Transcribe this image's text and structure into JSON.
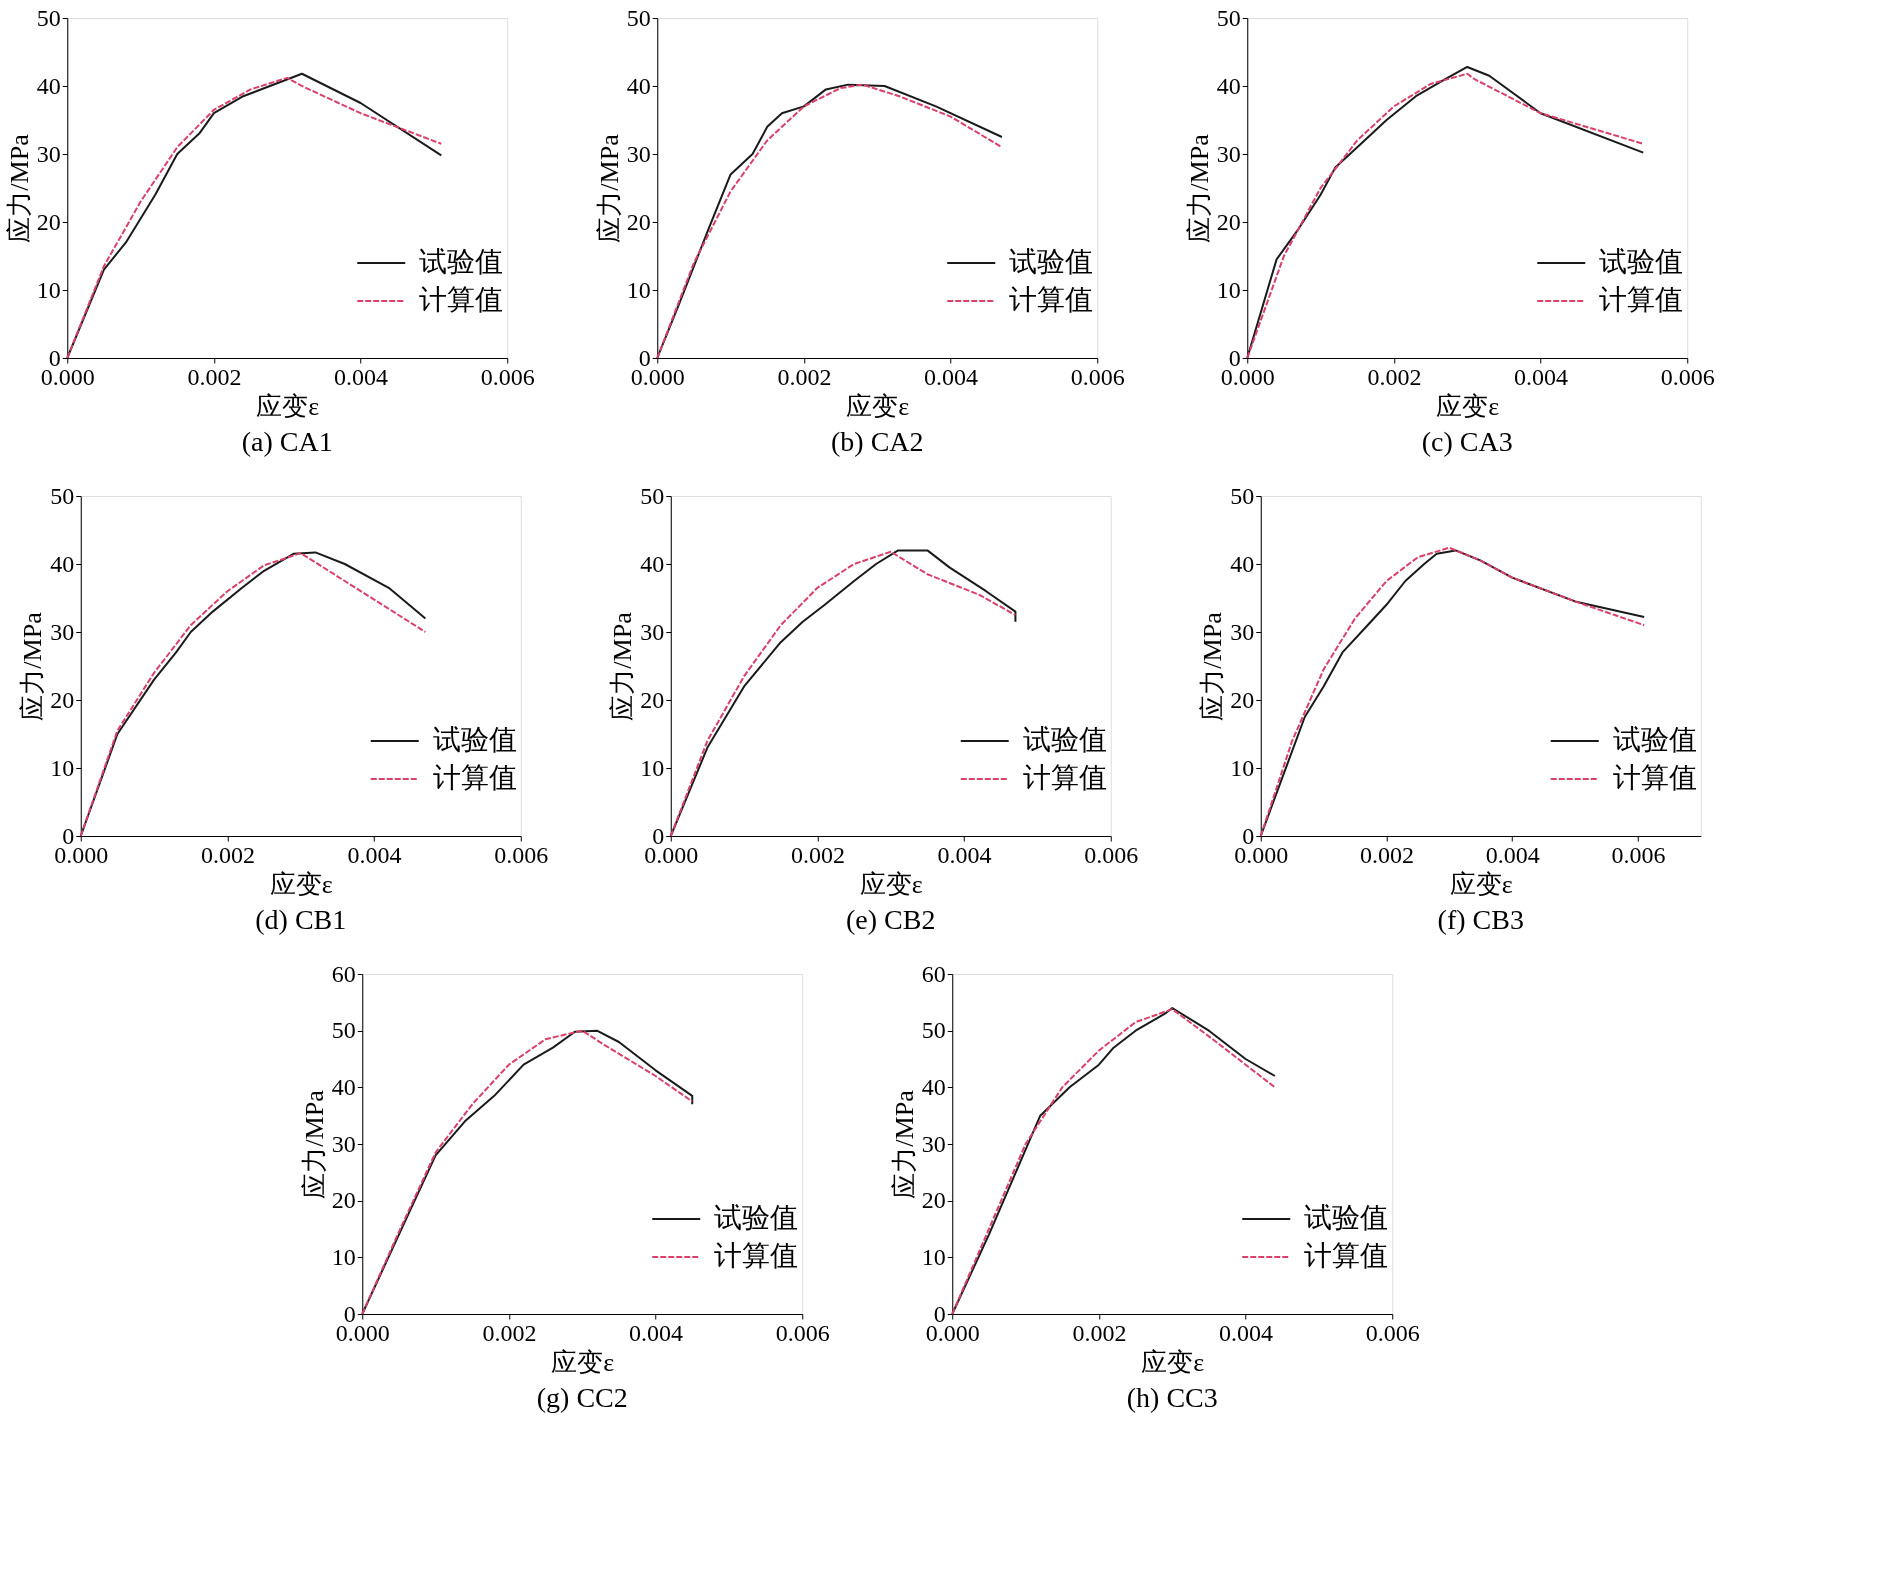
{
  "chart_data": [
    {
      "type": "line",
      "title": "(a) CA1",
      "xlabel": "应变ε",
      "ylabel": "应力/MPa",
      "xlim": [
        0,
        0.006
      ],
      "xticks": [
        {
          "value": 0,
          "label": "0.000"
        },
        {
          "value": 0.002,
          "label": "0.002"
        },
        {
          "value": 0.004,
          "label": "0.004"
        },
        {
          "value": 0.006,
          "label": "0.006"
        }
      ],
      "ylim": [
        0,
        50
      ],
      "yticks": [
        0,
        10,
        20,
        30,
        40,
        50
      ],
      "legend": "bottom right",
      "grid": false,
      "series": [
        {
          "name": "试验值",
          "color": "#1a1a1a",
          "line_style": "solid",
          "x": [
            0,
            0.0005,
            0.0008,
            0.0012,
            0.0015,
            0.0018,
            0.002,
            0.0024,
            0.0032,
            0.004,
            0.0051
          ],
          "values": [
            0,
            13,
            17,
            24,
            30,
            33,
            36,
            38.5,
            41.8,
            37.5,
            29.8
          ]
        },
        {
          "name": "计算值",
          "color": "#d9406a",
          "line_style": "dashed",
          "x": [
            0,
            0.0005,
            0.001,
            0.0015,
            0.002,
            0.0025,
            0.003,
            0.0032,
            0.004,
            0.0051
          ],
          "values": [
            0,
            13.5,
            23,
            31,
            36.5,
            39.5,
            41.2,
            40,
            36,
            31.5
          ]
        }
      ]
    },
    {
      "type": "line",
      "title": "(b) CA2",
      "xlabel": "应变ε",
      "ylabel": "应力/MPa",
      "xlim": [
        0,
        0.006
      ],
      "xticks": [
        {
          "value": 0,
          "label": "0.000"
        },
        {
          "value": 0.002,
          "label": "0.002"
        },
        {
          "value": 0.004,
          "label": "0.004"
        },
        {
          "value": 0.006,
          "label": "0.006"
        }
      ],
      "ylim": [
        0,
        50
      ],
      "yticks": [
        0,
        10,
        20,
        30,
        40,
        50
      ],
      "legend": "bottom right",
      "grid": false,
      "series": [
        {
          "name": "试验值",
          "color": "#1a1a1a",
          "line_style": "solid",
          "x": [
            0,
            0.0003,
            0.0007,
            0.001,
            0.0013,
            0.0015,
            0.0017,
            0.002,
            0.0023,
            0.0026,
            0.0031,
            0.0038,
            0.0047
          ],
          "values": [
            0,
            8,
            19,
            27,
            30,
            34,
            36,
            37,
            39.5,
            40.2,
            40,
            37,
            32.5
          ]
        },
        {
          "name": "计算值",
          "color": "#d9406a",
          "line_style": "dashed",
          "x": [
            0,
            0.0005,
            0.001,
            0.0015,
            0.002,
            0.0025,
            0.0028,
            0.0033,
            0.004,
            0.0047
          ],
          "values": [
            0,
            14,
            24.5,
            32,
            37,
            39.7,
            40.2,
            38.5,
            35.5,
            31
          ]
        }
      ]
    },
    {
      "type": "line",
      "title": "(c) CA3",
      "xlabel": "应变ε",
      "ylabel": "应力/MPa",
      "xlim": [
        0,
        0.006
      ],
      "xticks": [
        {
          "value": 0,
          "label": "0.000"
        },
        {
          "value": 0.002,
          "label": "0.002"
        },
        {
          "value": 0.004,
          "label": "0.004"
        },
        {
          "value": 0.006,
          "label": "0.006"
        }
      ],
      "ylim": [
        0,
        50
      ],
      "yticks": [
        0,
        10,
        20,
        30,
        40,
        50
      ],
      "legend": "bottom right",
      "grid": false,
      "series": [
        {
          "name": "试验值",
          "color": "#1a1a1a",
          "line_style": "solid",
          "x": [
            0,
            0.0004,
            0.0007,
            0.001,
            0.0012,
            0.0015,
            0.0019,
            0.0023,
            0.0027,
            0.003,
            0.0033,
            0.004,
            0.0054
          ],
          "values": [
            0,
            14.5,
            19,
            24,
            28,
            31,
            35,
            38.5,
            41,
            42.8,
            41.5,
            36,
            30.2
          ]
        },
        {
          "name": "计算值",
          "color": "#d9406a",
          "line_style": "dashed",
          "x": [
            0,
            0.0005,
            0.001,
            0.0015,
            0.002,
            0.0025,
            0.003,
            0.0031,
            0.004,
            0.0054
          ],
          "values": [
            0,
            15,
            25,
            32,
            37,
            40.3,
            41.8,
            41,
            36,
            31.5
          ]
        }
      ]
    },
    {
      "type": "line",
      "title": "(d) CB1",
      "xlabel": "应变ε",
      "ylabel": "应力/MPa",
      "xlim": [
        0,
        0.006
      ],
      "xticks": [
        {
          "value": 0,
          "label": "0.000"
        },
        {
          "value": 0.002,
          "label": "0.002"
        },
        {
          "value": 0.004,
          "label": "0.004"
        },
        {
          "value": 0.006,
          "label": "0.006"
        }
      ],
      "ylim": [
        0,
        50
      ],
      "yticks": [
        0,
        10,
        20,
        30,
        40,
        50
      ],
      "legend": "bottom right",
      "grid": false,
      "series": [
        {
          "name": "试验值",
          "color": "#1a1a1a",
          "line_style": "solid",
          "x": [
            0,
            0.0005,
            0.001,
            0.0013,
            0.0015,
            0.0018,
            0.0022,
            0.0025,
            0.0029,
            0.0032,
            0.0036,
            0.0042,
            0.0047
          ],
          "values": [
            0,
            15,
            23,
            27,
            30,
            33,
            36.5,
            39,
            41.5,
            41.7,
            40,
            36.5,
            32
          ]
        },
        {
          "name": "计算值",
          "color": "#d9406a",
          "line_style": "dashed",
          "x": [
            0,
            0.0005,
            0.001,
            0.0015,
            0.002,
            0.0025,
            0.003,
            0.0036,
            0.0047
          ],
          "values": [
            0,
            15.5,
            24,
            31,
            36,
            39.8,
            41.6,
            37.5,
            30
          ]
        }
      ]
    },
    {
      "type": "line",
      "title": "(e) CB2",
      "xlabel": "应变ε",
      "ylabel": "应力/MPa",
      "xlim": [
        0,
        0.006
      ],
      "xticks": [
        {
          "value": 0,
          "label": "0.000"
        },
        {
          "value": 0.002,
          "label": "0.002"
        },
        {
          "value": 0.004,
          "label": "0.004"
        },
        {
          "value": 0.006,
          "label": "0.006"
        }
      ],
      "ylim": [
        0,
        50
      ],
      "yticks": [
        0,
        10,
        20,
        30,
        40,
        50
      ],
      "legend": "bottom right",
      "grid": false,
      "series": [
        {
          "name": "试验值",
          "color": "#1a1a1a",
          "line_style": "solid",
          "x": [
            0,
            0.0005,
            0.001,
            0.0015,
            0.0018,
            0.0021,
            0.0025,
            0.0028,
            0.0031,
            0.0035,
            0.0038,
            0.0043,
            0.0047,
            0.0047
          ],
          "values": [
            0,
            13,
            22,
            28.5,
            31.5,
            34,
            37.5,
            40,
            42,
            42,
            39.5,
            36,
            33,
            31.5
          ]
        },
        {
          "name": "计算值",
          "color": "#d9406a",
          "line_style": "dashed",
          "x": [
            0,
            0.0005,
            0.001,
            0.0015,
            0.002,
            0.0025,
            0.003,
            0.0035,
            0.0042,
            0.0047
          ],
          "values": [
            0,
            14,
            23.5,
            31,
            36.5,
            40,
            41.8,
            38.5,
            35.5,
            32.5
          ]
        }
      ]
    },
    {
      "type": "line",
      "title": "(f) CB3",
      "xlabel": "应变ε",
      "ylabel": "应力/MPa",
      "xlim": [
        0,
        0.007
      ],
      "xticks": [
        {
          "value": 0,
          "label": "0.000"
        },
        {
          "value": 0.002,
          "label": "0.002"
        },
        {
          "value": 0.004,
          "label": "0.004"
        },
        {
          "value": 0.006,
          "label": "0.006"
        }
      ],
      "ylim": [
        0,
        50
      ],
      "yticks": [
        0,
        10,
        20,
        30,
        40,
        50
      ],
      "legend": "bottom right",
      "grid": false,
      "series": [
        {
          "name": "试验值",
          "color": "#1a1a1a",
          "line_style": "solid",
          "x": [
            0,
            0.0007,
            0.001,
            0.0013,
            0.0017,
            0.002,
            0.0023,
            0.0026,
            0.0028,
            0.0031,
            0.0035,
            0.004,
            0.005,
            0.0061
          ],
          "values": [
            0,
            17.5,
            22,
            27,
            31,
            34,
            37.5,
            40,
            41.5,
            42,
            40.5,
            38,
            34.5,
            32.2
          ]
        },
        {
          "name": "计算值",
          "color": "#d9406a",
          "line_style": "dashed",
          "x": [
            0,
            0.0005,
            0.001,
            0.0015,
            0.002,
            0.0025,
            0.003,
            0.0035,
            0.004,
            0.005,
            0.0061
          ],
          "values": [
            0,
            14,
            24.5,
            32,
            37.5,
            41,
            42.4,
            40.5,
            38,
            34.5,
            31
          ]
        }
      ]
    },
    {
      "type": "line",
      "title": "(g) CC2",
      "xlabel": "应变ε",
      "ylabel": "应力/MPa",
      "xlim": [
        0,
        0.006
      ],
      "xticks": [
        {
          "value": 0,
          "label": "0.000"
        },
        {
          "value": 0.002,
          "label": "0.002"
        },
        {
          "value": 0.004,
          "label": "0.004"
        },
        {
          "value": 0.006,
          "label": "0.006"
        }
      ],
      "ylim": [
        0,
        60
      ],
      "yticks": [
        0,
        10,
        20,
        30,
        40,
        50,
        60
      ],
      "legend": "bottom right",
      "grid": false,
      "series": [
        {
          "name": "试验值",
          "color": "#1a1a1a",
          "line_style": "solid",
          "x": [
            0,
            0.0005,
            0.001,
            0.0014,
            0.0018,
            0.0022,
            0.0026,
            0.0029,
            0.0032,
            0.0035,
            0.004,
            0.0045,
            0.0045
          ],
          "values": [
            0,
            14,
            28,
            34,
            38.5,
            44,
            47,
            49.8,
            50,
            48,
            43,
            38.5,
            37
          ]
        },
        {
          "name": "计算值",
          "color": "#d9406a",
          "line_style": "dashed",
          "x": [
            0,
            0.0005,
            0.001,
            0.0015,
            0.002,
            0.0025,
            0.003,
            0.0033,
            0.004,
            0.0045
          ],
          "values": [
            0,
            14.5,
            28.5,
            37,
            44,
            48.5,
            50,
            47.5,
            42,
            37.5
          ]
        }
      ]
    },
    {
      "type": "line",
      "title": "(h) CC3",
      "xlabel": "应变ε",
      "ylabel": "应力/MPa",
      "xlim": [
        0,
        0.006
      ],
      "xticks": [
        {
          "value": 0,
          "label": "0.000"
        },
        {
          "value": 0.002,
          "label": "0.002"
        },
        {
          "value": 0.004,
          "label": "0.004"
        },
        {
          "value": 0.006,
          "label": "0.006"
        }
      ],
      "ylim": [
        0,
        60
      ],
      "yticks": [
        0,
        10,
        20,
        30,
        40,
        50,
        60
      ],
      "legend": "bottom right",
      "grid": false,
      "series": [
        {
          "name": "试验值",
          "color": "#1a1a1a",
          "line_style": "solid",
          "x": [
            0,
            0.0005,
            0.001,
            0.0012,
            0.0016,
            0.002,
            0.0022,
            0.0025,
            0.0029,
            0.003,
            0.0035,
            0.004,
            0.0044
          ],
          "values": [
            0,
            14,
            29,
            35,
            40,
            44,
            47,
            50,
            53,
            54,
            50,
            45,
            42
          ]
        },
        {
          "name": "计算值",
          "color": "#d9406a",
          "line_style": "dashed",
          "x": [
            0,
            0.0005,
            0.001,
            0.0015,
            0.002,
            0.0025,
            0.003,
            0.0035,
            0.004,
            0.0044
          ],
          "values": [
            0,
            15,
            30,
            40,
            46.5,
            51.5,
            53.8,
            49,
            44,
            40
          ]
        }
      ]
    }
  ]
}
